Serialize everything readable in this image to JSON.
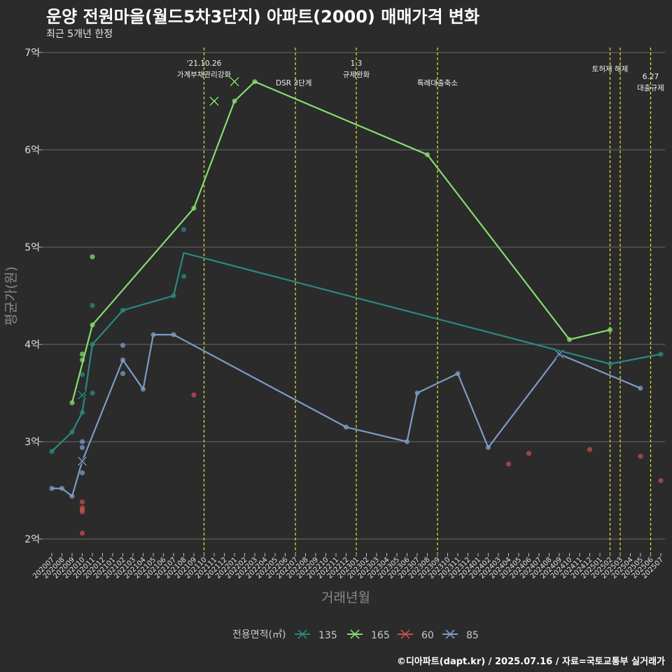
{
  "header": {
    "title": "운양 전원마을(월드5차3단지) 아파트(2000) 매매가격 변화",
    "subtitle": "최근 5개년 한정"
  },
  "footer": {
    "credit": "©디아파트(dapt.kr) / 2025.07.16 / 자료=국토교통부 실거래가"
  },
  "chart_data": {
    "type": "line",
    "title": "운양 전원마을(월드5차3단지) 아파트(2000) 매매가격 변화",
    "subtitle": "최근 5개년 한정",
    "xlabel": "거래년월",
    "ylabel": "평균가(원)",
    "ylim": [
      1.8,
      7.05
    ],
    "y_ticks": [
      {
        "value": 2,
        "label": "2억"
      },
      {
        "value": 3,
        "label": "3억"
      },
      {
        "value": 4,
        "label": "4억"
      },
      {
        "value": 5,
        "label": "5억"
      },
      {
        "value": 6,
        "label": "6억"
      },
      {
        "value": 7,
        "label": "7억"
      }
    ],
    "categories": [
      "202007",
      "202008",
      "202009",
      "202010",
      "202011",
      "202012",
      "202101",
      "202102",
      "202103",
      "202104",
      "202105",
      "202106",
      "202107",
      "202108",
      "202109",
      "202110",
      "202111",
      "202112",
      "202201",
      "202202",
      "202203",
      "202204",
      "202205",
      "202206",
      "202207",
      "202208",
      "202209",
      "202210",
      "202211",
      "202212",
      "202301",
      "202302",
      "202303",
      "202304",
      "202305",
      "202306",
      "202307",
      "202308",
      "202309",
      "202310",
      "202311",
      "202312",
      "202401",
      "202402",
      "202403",
      "202404",
      "202405",
      "202406",
      "202407",
      "202408",
      "202409",
      "202410",
      "202411",
      "202412",
      "202501",
      "202502",
      "202503",
      "202504",
      "202505",
      "202506",
      "202507"
    ],
    "legend_title": "전용면적(㎡)",
    "events": [
      {
        "x_index": 15,
        "lines": [
          "'21.10.26",
          "가계부채관리강화"
        ],
        "anchor": "middle"
      },
      {
        "x_index": 24,
        "lines": [
          "DSR 3단계"
        ],
        "anchor": "end-right"
      },
      {
        "x_index": 30,
        "lines": [
          "1.3",
          "규제완화"
        ],
        "anchor": "middle"
      },
      {
        "x_index": 38,
        "lines": [
          "특례대출축소"
        ],
        "anchor": "middle-low"
      },
      {
        "x_index": 55,
        "lines": [
          "토허제 해제"
        ],
        "anchor": "end-left"
      },
      {
        "x_index": 56,
        "lines": [],
        "anchor": "none"
      },
      {
        "x_index": 59,
        "lines": [
          "6.27",
          "대출규제"
        ],
        "anchor": "end-right"
      }
    ],
    "series": [
      {
        "name": "135",
        "color": "#2a8a80",
        "line": [
          [
            0,
            2.9
          ],
          [
            2,
            3.1
          ],
          [
            3,
            3.3
          ],
          [
            4,
            4.0
          ],
          [
            7,
            4.35
          ],
          [
            12,
            4.5
          ],
          [
            13,
            4.94
          ],
          [
            55,
            3.8
          ],
          [
            60,
            3.9
          ]
        ],
        "points": [
          [
            0,
            2.9
          ],
          [
            2,
            3.1
          ],
          [
            3,
            3.3
          ],
          [
            3,
            3.48
          ],
          [
            3,
            3.69
          ],
          [
            4,
            4.0
          ],
          [
            4,
            3.5
          ],
          [
            4,
            4.4
          ],
          [
            7,
            4.35
          ],
          [
            12,
            4.5
          ],
          [
            13,
            4.7
          ],
          [
            13,
            5.18
          ],
          [
            55,
            3.8
          ],
          [
            60,
            3.9
          ]
        ],
        "cancelled": [
          [
            3,
            3.48
          ]
        ]
      },
      {
        "name": "165",
        "color": "#86dc6e",
        "line": [
          [
            2,
            3.4
          ],
          [
            4,
            4.2
          ],
          [
            14,
            5.4
          ],
          [
            18,
            6.5
          ],
          [
            20,
            6.7
          ],
          [
            37,
            5.95
          ],
          [
            51,
            4.05
          ],
          [
            55,
            4.15
          ]
        ],
        "points": [
          [
            2,
            3.4
          ],
          [
            3,
            3.84
          ],
          [
            3,
            3.9
          ],
          [
            4,
            4.2
          ],
          [
            4,
            4.9
          ],
          [
            14,
            5.4
          ],
          [
            18,
            6.5
          ],
          [
            20,
            6.7
          ],
          [
            37,
            5.95
          ],
          [
            51,
            4.05
          ],
          [
            55,
            4.15
          ]
        ],
        "cancelled": [
          [
            16,
            6.5
          ],
          [
            18,
            6.7
          ]
        ]
      },
      {
        "name": "60",
        "color": "#c44f50",
        "line": [],
        "points": [
          [
            3,
            2.06
          ],
          [
            3,
            2.28
          ],
          [
            3,
            2.3
          ],
          [
            3,
            2.32
          ],
          [
            3,
            2.38
          ],
          [
            14,
            3.48
          ],
          [
            45,
            2.77
          ],
          [
            47,
            2.88
          ],
          [
            53,
            2.92
          ],
          [
            58,
            2.85
          ],
          [
            60,
            2.6
          ]
        ],
        "cancelled": []
      },
      {
        "name": "85",
        "color": "#7d9bc5",
        "line": [
          [
            0,
            2.52
          ],
          [
            1,
            2.52
          ],
          [
            2,
            2.44
          ],
          [
            3,
            2.8
          ],
          [
            7,
            3.84
          ],
          [
            9,
            3.54
          ],
          [
            10,
            4.1
          ],
          [
            12,
            4.1
          ],
          [
            29,
            3.15
          ],
          [
            35,
            3.0
          ],
          [
            36,
            3.5
          ],
          [
            40,
            3.7
          ],
          [
            43,
            2.94
          ],
          [
            50,
            3.9
          ],
          [
            58,
            3.55
          ]
        ],
        "points": [
          [
            0,
            2.52
          ],
          [
            1,
            2.52
          ],
          [
            2,
            2.44
          ],
          [
            3,
            2.68
          ],
          [
            3,
            2.8
          ],
          [
            3,
            2.94
          ],
          [
            3,
            3.0
          ],
          [
            7,
            3.7
          ],
          [
            7,
            3.84
          ],
          [
            7,
            3.99
          ],
          [
            9,
            3.54
          ],
          [
            10,
            4.1
          ],
          [
            12,
            4.1
          ],
          [
            29,
            3.15
          ],
          [
            35,
            3.0
          ],
          [
            36,
            3.5
          ],
          [
            40,
            3.7
          ],
          [
            43,
            2.94
          ],
          [
            50,
            3.9
          ],
          [
            58,
            3.55
          ]
        ],
        "cancelled": [
          [
            3,
            2.8
          ],
          [
            50,
            3.9
          ]
        ]
      }
    ]
  }
}
